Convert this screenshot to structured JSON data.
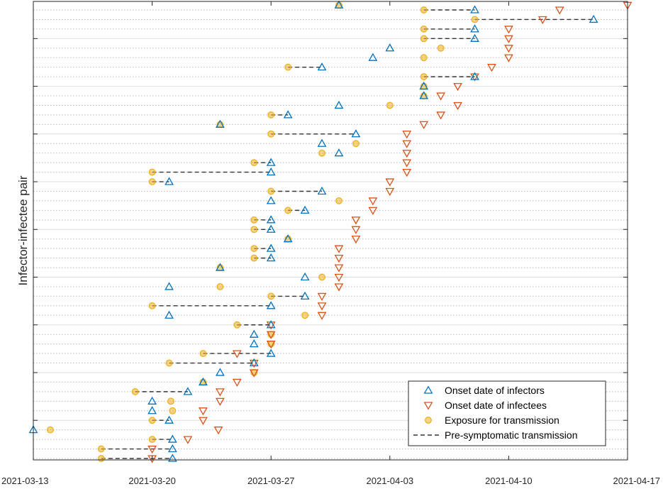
{
  "chart_data": {
    "type": "scatter",
    "title": "",
    "xlabel": "",
    "ylabel": "Infector-infectee pair",
    "x_ticks": [
      "2021-03-13",
      "2021-03-20",
      "2021-03-27",
      "2021-04-03",
      "2021-04-10",
      "2021-04-17"
    ],
    "x_tick_days": [
      0,
      7,
      14,
      21,
      28,
      35
    ],
    "xlim_days": [
      0,
      35
    ],
    "x_units": "days since 2021-03-13",
    "ylim_pairs": [
      0,
      48
    ],
    "legend": {
      "position": "bottom-right",
      "entries": [
        {
          "key": "infector",
          "label": "Onset date of infectors"
        },
        {
          "key": "infectee",
          "label": "Onset date of infectees"
        },
        {
          "key": "exposure",
          "label": "Exposure for transmission"
        },
        {
          "key": "presym",
          "label": "Pre-symptomatic transmission"
        }
      ]
    },
    "colors": {
      "infector": "#0072BD",
      "infectee": "#D95319",
      "exposure": "#EDB120",
      "presym": "#333333",
      "grid_major": "#dddddd",
      "grid_minor": "#bbbbbb"
    },
    "pairs": [
      {
        "pair": 1,
        "infector": 8.2,
        "infectee": 7.0,
        "exposure": 4.0,
        "presym": true
      },
      {
        "pair": 2,
        "infector": 8.2,
        "infectee": 7.0,
        "exposure": 4.0,
        "presym": true
      },
      {
        "pair": 3,
        "infector": 8.2,
        "infectee": 9.1,
        "exposure": 7.0,
        "presym": true
      },
      {
        "pair": 4,
        "infector": 0.0,
        "infectee": 10.9,
        "exposure": 1.0,
        "presym": false
      },
      {
        "pair": 5,
        "infector": 8.0,
        "infectee": 10.0,
        "exposure": 7.0,
        "presym": true
      },
      {
        "pair": 6,
        "infector": 7.0,
        "infectee": 10.0,
        "exposure": 8.2,
        "presym": false
      },
      {
        "pair": 7,
        "infector": 7.0,
        "infectee": 11.0,
        "exposure": 8.1,
        "presym": false
      },
      {
        "pair": 8,
        "infector": 9.1,
        "infectee": 11.0,
        "exposure": 6.0,
        "presym": true
      },
      {
        "pair": 9,
        "infector": 10.0,
        "infectee": 12.0,
        "exposure": 10.0,
        "presym": false
      },
      {
        "pair": 10,
        "infector": 11.0,
        "infectee": 13.0,
        "exposure": 13.0,
        "presym": false
      },
      {
        "pair": 11,
        "infector": 13.0,
        "infectee": 13.0,
        "exposure": 8.0,
        "presym": true
      },
      {
        "pair": 12,
        "infector": 14.0,
        "infectee": 12.0,
        "exposure": 10.0,
        "presym": true
      },
      {
        "pair": 13,
        "infector": 13.0,
        "infectee": 14.0,
        "exposure": 14.0,
        "presym": false
      },
      {
        "pair": 14,
        "infector": 13.0,
        "infectee": 14.0,
        "exposure": 14.0,
        "presym": false
      },
      {
        "pair": 15,
        "infector": 14.0,
        "infectee": 14.0,
        "exposure": 12.0,
        "presym": true
      },
      {
        "pair": 16,
        "infector": 8.0,
        "infectee": 17.0,
        "exposure": 16.0,
        "presym": false
      },
      {
        "pair": 17,
        "infector": 14.0,
        "infectee": 17.0,
        "exposure": 7.0,
        "presym": true
      },
      {
        "pair": 18,
        "infector": 16.0,
        "infectee": 17.0,
        "exposure": 14.0,
        "presym": true
      },
      {
        "pair": 19,
        "infector": 8.0,
        "infectee": 18.0,
        "exposure": 11.0,
        "presym": false
      },
      {
        "pair": 20,
        "infector": 16.0,
        "infectee": 18.0,
        "exposure": 17.0,
        "presym": false
      },
      {
        "pair": 21,
        "infector": 11.0,
        "infectee": 18.0,
        "exposure": 11.0,
        "presym": false
      },
      {
        "pair": 22,
        "infector": 14.0,
        "infectee": 18.0,
        "exposure": 13.0,
        "presym": true
      },
      {
        "pair": 23,
        "infector": 14.0,
        "infectee": 18.0,
        "exposure": 13.0,
        "presym": true
      },
      {
        "pair": 24,
        "infector": 15.0,
        "infectee": 19.0,
        "exposure": 15.0,
        "presym": false
      },
      {
        "pair": 25,
        "infector": 14.0,
        "infectee": 19.0,
        "exposure": 13.0,
        "presym": true
      },
      {
        "pair": 26,
        "infector": 14.0,
        "infectee": 19.0,
        "exposure": 13.0,
        "presym": true
      },
      {
        "pair": 27,
        "infector": 16.0,
        "infectee": 20.0,
        "exposure": 15.0,
        "presym": true
      },
      {
        "pair": 28,
        "infector": 14.0,
        "infectee": 20.0,
        "exposure": 18.0,
        "presym": false
      },
      {
        "pair": 29,
        "infector": 17.0,
        "infectee": 21.0,
        "exposure": 14.0,
        "presym": true
      },
      {
        "pair": 30,
        "infector": 8.0,
        "infectee": 21.0,
        "exposure": 7.0,
        "presym": true
      },
      {
        "pair": 31,
        "infector": 14.0,
        "infectee": 22.0,
        "exposure": 7.0,
        "presym": true
      },
      {
        "pair": 32,
        "infector": 14.0,
        "infectee": 22.0,
        "exposure": 13.0,
        "presym": true
      },
      {
        "pair": 33,
        "infector": 18.0,
        "infectee": 22.0,
        "exposure": 17.0,
        "presym": false
      },
      {
        "pair": 34,
        "infector": 17.0,
        "infectee": 22.0,
        "exposure": 19.0,
        "presym": false
      },
      {
        "pair": 35,
        "infector": 19.0,
        "infectee": 22.0,
        "exposure": 14.0,
        "presym": true
      },
      {
        "pair": 36,
        "infector": 11.0,
        "infectee": 23.0,
        "exposure": 11.0,
        "presym": false
      },
      {
        "pair": 37,
        "infector": 15.0,
        "infectee": 24.0,
        "exposure": 14.0,
        "presym": true
      },
      {
        "pair": 38,
        "infector": 18.0,
        "infectee": 25.0,
        "exposure": 21.0,
        "presym": false
      },
      {
        "pair": 39,
        "infector": 23.0,
        "infectee": 24.0,
        "exposure": 23.0,
        "presym": false
      },
      {
        "pair": 40,
        "infector": 23.0,
        "infectee": 25.0,
        "exposure": 23.0,
        "presym": false
      },
      {
        "pair": 41,
        "infector": 26.0,
        "infectee": 26.0,
        "exposure": 23.0,
        "presym": true
      },
      {
        "pair": 42,
        "infector": 17.0,
        "infectee": 27.0,
        "exposure": 15.0,
        "presym": true
      },
      {
        "pair": 43,
        "infector": 20.0,
        "infectee": 28.0,
        "exposure": 23.0,
        "presym": false
      },
      {
        "pair": 44,
        "infector": 21.0,
        "infectee": 28.0,
        "exposure": 24.0,
        "presym": false
      },
      {
        "pair": 45,
        "infector": 26.0,
        "infectee": 28.0,
        "exposure": 23.0,
        "presym": true
      },
      {
        "pair": 46,
        "infector": 26.0,
        "infectee": 28.0,
        "exposure": 23.0,
        "presym": true
      },
      {
        "pair": 47,
        "infector": 33.0,
        "infectee": 30.0,
        "exposure": 26.0,
        "presym": true
      },
      {
        "pair": 48,
        "infector": 26.0,
        "infectee": 31.0,
        "exposure": 23.0,
        "presym": true
      }
    ],
    "extra_points": [
      {
        "series": "exposure",
        "x": 18.0,
        "pair": 48.5
      },
      {
        "series": "infector",
        "x": 18.0,
        "pair": 48.5
      },
      {
        "series": "infectee",
        "x": 35.0,
        "pair": 48.5
      }
    ]
  }
}
